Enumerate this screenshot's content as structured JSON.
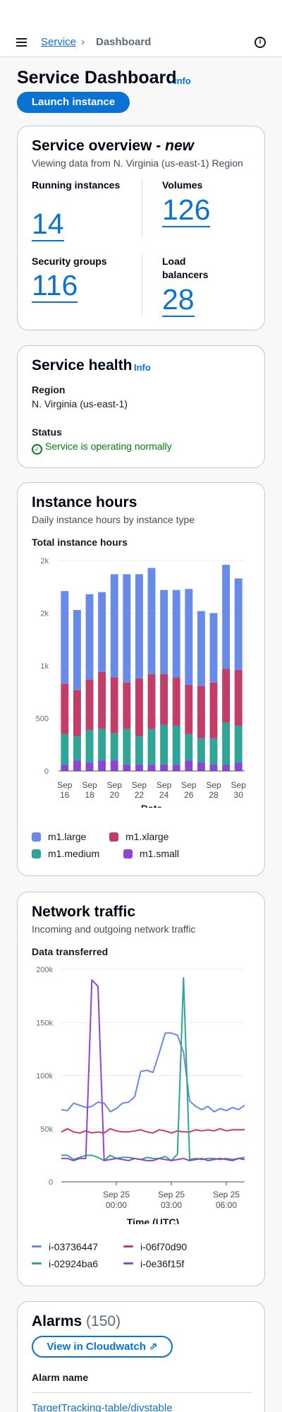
{
  "header": {
    "breadcrumbs": [
      "Service",
      "Dashboard"
    ],
    "breadcrumb_separator": "›",
    "info_icon_glyph": "i"
  },
  "page": {
    "title": "Service Dashboard",
    "info_label": "Info",
    "launch_button": "Launch instance"
  },
  "overview": {
    "title": "Service overview - ",
    "title_emphasis": "new",
    "subtitle": "Viewing data from N. Virginia (us-east-1) Region",
    "metrics": [
      {
        "label": "Running instances",
        "value": "14"
      },
      {
        "label": "Volumes",
        "value": "126"
      },
      {
        "label": "Security groups",
        "value": "116"
      },
      {
        "label": "Load balancers",
        "value": "28"
      }
    ]
  },
  "health": {
    "title": "Service health",
    "info_label": "Info",
    "region_label": "Region",
    "region_value": "N. Virginia (us-east-1)",
    "status_label": "Status",
    "status_value": "Service is operating normally",
    "status_icon": "check-circle-icon",
    "status_color": "#037f0c"
  },
  "instance_hours": {
    "title": "Instance hours",
    "subtitle": "Daily instance hours by instance type",
    "chart_label": "Total instance hours"
  },
  "network": {
    "title": "Network traffic",
    "subtitle": "Incoming and outgoing network traffic",
    "chart_label": "Data transferred"
  },
  "alarms": {
    "title": "Alarms",
    "count": "(150)",
    "button_label": "View in Cloudwatch",
    "button_icon": "external-link-icon",
    "column_header": "Alarm name",
    "first_alarm": "TargetTracking-table/divstable"
  },
  "chart_data": [
    {
      "type": "bar",
      "stacked": true,
      "title": "Total instance hours",
      "xlabel": "Date",
      "ylabel": "",
      "ylim": [
        0,
        2000
      ],
      "yticks": [
        0,
        500,
        1000,
        1500,
        2000
      ],
      "ytick_labels": [
        "0",
        "500",
        "1k",
        "2k",
        "2k"
      ],
      "categories": [
        "Sep 16",
        "Sep 17",
        "Sep 18",
        "Sep 19",
        "Sep 20",
        "Sep 21",
        "Sep 22",
        "Sep 23",
        "Sep 24",
        "Sep 25",
        "Sep 26",
        "Sep 27",
        "Sep 28",
        "Sep 29",
        "Sep 30"
      ],
      "xtick_labels": [
        "Sep 16",
        "",
        "Sep 18",
        "",
        "Sep 20",
        "",
        "Sep 22",
        "",
        "Sep 24",
        "",
        "Sep 26",
        "",
        "Sep 28",
        "",
        "Sep 30"
      ],
      "legend_position": "bottom",
      "grid": true,
      "series": [
        {
          "name": "m1.small",
          "color": "#8e45d4",
          "values": [
            60,
            100,
            80,
            100,
            100,
            60,
            60,
            60,
            60,
            60,
            100,
            80,
            60,
            60,
            80
          ]
        },
        {
          "name": "m1.medium",
          "color": "#2ea597",
          "values": [
            290,
            230,
            310,
            300,
            260,
            340,
            270,
            340,
            380,
            370,
            250,
            230,
            250,
            400,
            350
          ]
        },
        {
          "name": "m1.xlarge",
          "color": "#c33d69",
          "values": [
            480,
            440,
            480,
            540,
            530,
            440,
            550,
            520,
            480,
            460,
            470,
            500,
            530,
            510,
            530
          ]
        },
        {
          "name": "m1.large",
          "color": "#688ae8",
          "values": [
            880,
            760,
            810,
            760,
            980,
            1030,
            990,
            1010,
            800,
            830,
            910,
            710,
            660,
            990,
            870
          ]
        }
      ]
    },
    {
      "type": "line",
      "title": "Data transferred",
      "xlabel": "Time (UTC)",
      "ylabel": "",
      "xlim": [
        "Sep 24 21:00",
        "Sep 25 07:00"
      ],
      "ylim": [
        0,
        200000
      ],
      "yticks": [
        0,
        50000,
        100000,
        150000,
        200000
      ],
      "ytick_labels": [
        "0",
        "50k",
        "100k",
        "150k",
        "200k"
      ],
      "xticks": [
        "Sep 25 00:00",
        "Sep 25 03:00",
        "Sep 25 06:00"
      ],
      "xtick_labels": [
        [
          "Sep 25",
          "00:00"
        ],
        [
          "Sep 25",
          "03:00"
        ],
        [
          "Sep 25",
          "06:00"
        ]
      ],
      "legend_position": "bottom",
      "grid": true,
      "x": [
        "21:00",
        "21:20",
        "21:40",
        "22:00",
        "22:20",
        "22:40",
        "23:00",
        "23:20",
        "23:40",
        "00:00",
        "00:20",
        "00:40",
        "01:00",
        "01:20",
        "01:40",
        "02:00",
        "02:20",
        "02:40",
        "03:00",
        "03:20",
        "03:40",
        "04:00",
        "04:20",
        "04:40",
        "05:00",
        "05:20",
        "05:40",
        "06:00",
        "06:20",
        "06:40",
        "07:00"
      ],
      "series": [
        {
          "name": "i-03736447",
          "color": "#688ae8",
          "values": [
            68000,
            67000,
            74000,
            72000,
            70000,
            71000,
            75000,
            74000,
            66000,
            69000,
            74000,
            75000,
            80000,
            104000,
            105000,
            103000,
            121000,
            140000,
            140000,
            138000,
            122000,
            76000,
            71000,
            68000,
            71000,
            66000,
            69000,
            67000,
            70000,
            68000,
            72000
          ]
        },
        {
          "name": "i-06f70d90",
          "color": "#c33d69",
          "values": [
            47000,
            50000,
            47000,
            46000,
            48000,
            46000,
            47000,
            46000,
            50000,
            48000,
            47000,
            47000,
            48000,
            49000,
            47000,
            46000,
            49000,
            48000,
            46000,
            48000,
            47000,
            47000,
            49000,
            48000,
            49000,
            48000,
            50000,
            48000,
            49000,
            49000,
            49000
          ]
        },
        {
          "name": "i-02924ba6",
          "color": "#2ea597",
          "values": [
            25000,
            25000,
            21000,
            23000,
            25000,
            25000,
            23000,
            20000,
            25000,
            22000,
            23000,
            23000,
            22000,
            21000,
            23000,
            22000,
            22000,
            24000,
            20000,
            26000,
            192000,
            21000,
            22000,
            21000,
            22000,
            22000,
            21000,
            22000,
            21000,
            22000,
            23000
          ]
        },
        {
          "name": "i-0e36f15f",
          "color": "#8e45d4",
          "values": [
            22000,
            22000,
            20000,
            22000,
            22000,
            190000,
            184000,
            20000,
            21000,
            22000,
            21000,
            20000,
            22000,
            21000,
            20000,
            20000,
            22000,
            21000,
            20000,
            21000,
            22000,
            20000,
            21000,
            22000,
            20000,
            21000,
            22000,
            21000,
            20000,
            22000,
            21000
          ]
        }
      ]
    }
  ]
}
